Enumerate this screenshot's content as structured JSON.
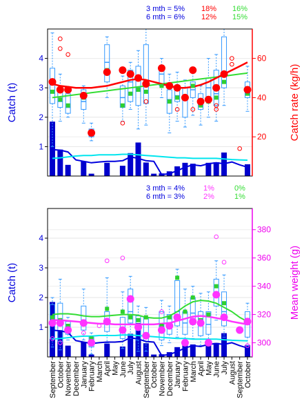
{
  "colors": {
    "catch": "#0000dd",
    "catch_fill": "#0000cc",
    "box": "#3399ff",
    "median_pt": "#2fd02f",
    "rate_pt": "#ff0000",
    "rate_outlier": "#ff0000",
    "rate_axis": "#ff0000",
    "weight_pt": "#ff33ff",
    "weight_axis": "#ee00ee",
    "smooth_green": "#33dd33",
    "cyan": "#00e5ee",
    "frame": "#000000"
  },
  "chart_data": [
    {
      "type": "bar",
      "panel": "top",
      "ylabel": "Catch (t)",
      "y2label": "Catch rate (kg/h)",
      "ylim": [
        0,
        5
      ],
      "y2lim": [
        0,
        75
      ],
      "yticks": [
        "1",
        "2",
        "3",
        "4"
      ],
      "y2ticks": [
        "20",
        "40",
        "60"
      ],
      "stats": [
        {
          "label": "3 mth = 5%",
          "v1": "18%",
          "v2": "16%"
        },
        {
          "label": "6 mth = 6%",
          "v1": "12%",
          "v2": "15%"
        }
      ],
      "n_months": 26,
      "catch_bars": [
        1.85,
        0.9,
        0.38,
        0,
        0.5,
        0.08,
        0,
        0.45,
        0,
        0.35,
        0.78,
        1.14,
        0.46,
        0.08,
        0.09,
        0.16,
        0.33,
        0.45,
        0.42,
        0,
        0.45,
        0.47,
        0.8,
        0,
        0,
        0.4
      ],
      "catch_line": [
        0.9,
        0.88,
        0.82,
        0.55,
        0.5,
        0.45,
        0.48,
        0.5,
        0.5,
        0.52,
        0.65,
        0.6,
        0.52,
        0.5,
        0.05,
        0.08,
        0.18,
        0.3,
        0.38,
        0.35,
        0.42,
        0.45,
        0.42,
        0.48,
        0.38,
        0.3
      ],
      "cyan_line": [
        0.6,
        0.62,
        0.65,
        0.68,
        0.7,
        0.7,
        0.72,
        0.72,
        0.72,
        0.74,
        0.74,
        0.72,
        0.7,
        0.68,
        0.66,
        0.64,
        0.62,
        0.62,
        0.6,
        0.6,
        0.6,
        0.6,
        0.58,
        0.56,
        0.55,
        0.54
      ],
      "rate": [
        48,
        44,
        44,
        null,
        41,
        22,
        null,
        53,
        null,
        54,
        52,
        50,
        47,
        null,
        55,
        46,
        45,
        40,
        54,
        38,
        39,
        45,
        52,
        null,
        null,
        44
      ],
      "rate_outliers": [
        [
          1,
          65
        ],
        [
          1,
          70
        ],
        [
          2,
          62
        ],
        [
          9,
          27
        ],
        [
          12,
          38
        ],
        [
          16,
          34
        ],
        [
          18,
          34
        ],
        [
          21,
          34
        ],
        [
          21,
          36
        ],
        [
          23,
          57
        ],
        [
          23,
          60
        ],
        [
          24,
          14
        ]
      ],
      "boxes": [
        {
          "i": 0,
          "q1": 37,
          "med": 48,
          "q3": 55,
          "lo": 15,
          "hi": 73,
          "g": 43
        },
        {
          "i": 1,
          "q1": 35,
          "med": 38,
          "q3": 45,
          "lo": 28,
          "hi": 52,
          "g": 39
        },
        {
          "i": 2,
          "q1": 32,
          "med": 35,
          "q3": 42,
          "lo": 30,
          "hi": 45,
          "g": 36
        },
        {
          "i": 4,
          "q1": 34,
          "med": 38,
          "q3": 44,
          "lo": 27,
          "hi": 46,
          "g": 40
        },
        {
          "i": 5,
          "q1": 20,
          "med": 22,
          "q3": 24,
          "lo": 18,
          "hi": 27,
          "g": 22
        },
        {
          "i": 7,
          "q1": 48,
          "med": 58,
          "q3": 67,
          "lo": 40,
          "hi": 71,
          "g": 54
        },
        {
          "i": 9,
          "q1": 35,
          "med": 40,
          "q3": 46,
          "lo": 28,
          "hi": 51,
          "g": 36
        },
        {
          "i": 10,
          "q1": 38,
          "med": 48,
          "q3": 54,
          "lo": 34,
          "hi": 58,
          "g": 42
        },
        {
          "i": 11,
          "q1": 36,
          "med": 45,
          "q3": 56,
          "lo": 24,
          "hi": 64,
          "g": 44
        },
        {
          "i": 12,
          "q1": 37,
          "med": 48,
          "q3": 67,
          "lo": 26,
          "hi": 75,
          "g": 43
        },
        {
          "i": 14,
          "q1": 46,
          "med": 52,
          "q3": 56,
          "lo": 40,
          "hi": 60,
          "g": 46
        },
        {
          "i": 15,
          "q1": 32,
          "med": 39,
          "q3": 44,
          "lo": 22,
          "hi": 52,
          "g": 38
        },
        {
          "i": 16,
          "q1": 38,
          "med": 41,
          "q3": 46,
          "lo": 28,
          "hi": 53,
          "g": 40
        },
        {
          "i": 17,
          "q1": 30,
          "med": 40,
          "q3": 45,
          "lo": 25,
          "hi": 49,
          "g": 40
        },
        {
          "i": 18,
          "q1": 40,
          "med": 44,
          "q3": 48,
          "lo": 31,
          "hi": 54,
          "g": 46
        },
        {
          "i": 19,
          "q1": 34,
          "med": 37,
          "q3": 42,
          "lo": 26,
          "hi": 46,
          "g": 36
        },
        {
          "i": 20,
          "q1": 40,
          "med": 45,
          "q3": 50,
          "lo": 30,
          "hi": 60,
          "g": 38
        },
        {
          "i": 21,
          "q1": 36,
          "med": 42,
          "q3": 54,
          "lo": 28,
          "hi": 62,
          "g": 40
        },
        {
          "i": 22,
          "q1": 45,
          "med": 53,
          "q3": 71,
          "lo": 36,
          "hi": 75,
          "g": 48
        },
        {
          "i": 25,
          "q1": 40,
          "med": 44,
          "q3": 48,
          "lo": 33,
          "hi": 56,
          "g": 42
        }
      ],
      "green_line": [
        40,
        40.5,
        41,
        41.5,
        42,
        42.5,
        43,
        43.5,
        44,
        44.5,
        45,
        45.5,
        46,
        46.5,
        47,
        47.5,
        48,
        48.5,
        49,
        49.5,
        50,
        50.5,
        51,
        51.5,
        52,
        52.5
      ],
      "red_line": [
        47,
        46,
        45.5,
        45,
        45,
        45,
        45.5,
        46,
        47,
        48,
        49,
        49.5,
        49,
        48,
        47,
        46,
        45,
        45,
        45.5,
        46.5,
        48,
        50,
        52,
        54,
        56,
        58
      ]
    },
    {
      "type": "bar",
      "panel": "bottom",
      "ylabel": "Catch (t)",
      "y2label": "Mean weight (g)",
      "ylim": [
        0,
        5
      ],
      "y2lim": [
        290,
        395
      ],
      "yticks": [
        "1",
        "2",
        "3",
        "4"
      ],
      "y2ticks": [
        "300",
        "320",
        "340",
        "360",
        "380"
      ],
      "stats": [
        {
          "label": "3 mth = 4%",
          "v1": "1%",
          "v2": "0%"
        },
        {
          "label": "6 mth = 3%",
          "v1": "2%",
          "v2": "1%"
        }
      ],
      "n_months": 26,
      "catch_bars": [
        1.85,
        0.9,
        0.38,
        0,
        0.5,
        0.08,
        0,
        0.45,
        0,
        0.35,
        0.78,
        1.14,
        0.46,
        0.08,
        0.09,
        0.16,
        0.33,
        0.45,
        0.42,
        0,
        0.45,
        0.47,
        0.8,
        0,
        0,
        0.4
      ],
      "catch_line": [
        0.9,
        0.88,
        0.82,
        0.55,
        0.5,
        0.45,
        0.48,
        0.5,
        0.5,
        0.52,
        0.65,
        0.6,
        0.52,
        0.5,
        0.05,
        0.08,
        0.18,
        0.3,
        0.38,
        0.35,
        0.42,
        0.45,
        0.42,
        0.48,
        0.38,
        0.3
      ],
      "cyan_line": [
        0.6,
        0.62,
        0.65,
        0.68,
        0.7,
        0.7,
        0.72,
        0.72,
        0.72,
        0.74,
        0.74,
        0.72,
        0.7,
        0.68,
        0.66,
        0.64,
        0.62,
        0.62,
        0.6,
        0.6,
        0.6,
        0.6,
        0.58,
        0.56,
        0.55,
        0.54
      ],
      "weight": [
        314,
        314,
        309,
        null,
        314,
        300,
        null,
        315,
        null,
        309,
        331,
        311,
        305,
        null,
        309,
        312,
        318,
        300,
        315,
        314,
        300,
        334,
        318,
        null,
        309,
        315
      ],
      "weight_outliers": [
        [
          0,
          303
        ],
        [
          1,
          300
        ],
        [
          2,
          309
        ],
        [
          4,
          307
        ],
        [
          6,
          312
        ],
        [
          7,
          358
        ],
        [
          9,
          360
        ],
        [
          14,
          322
        ],
        [
          21,
          375
        ],
        [
          22,
          357
        ],
        [
          25,
          298
        ]
      ],
      "boxes": [
        {
          "i": 0,
          "q1": 303,
          "med": 315,
          "q3": 327,
          "lo": 297,
          "hi": 332,
          "g": 318
        },
        {
          "i": 1,
          "q1": 301,
          "med": 313,
          "q3": 328,
          "lo": 295,
          "hi": 345,
          "g": 316
        },
        {
          "i": 2,
          "q1": 306,
          "med": 309,
          "q3": 315,
          "lo": 302,
          "hi": 318,
          "g": 312
        },
        {
          "i": 4,
          "q1": 309,
          "med": 316,
          "q3": 326,
          "lo": 302,
          "hi": 338,
          "g": 315
        },
        {
          "i": 5,
          "q1": 297,
          "med": 300,
          "q3": 304,
          "lo": 292,
          "hi": 307,
          "g": 303
        },
        {
          "i": 7,
          "q1": 308,
          "med": 314,
          "q3": 322,
          "lo": 300,
          "hi": 346,
          "g": 324
        },
        {
          "i": 9,
          "q1": 303,
          "med": 310,
          "q3": 318,
          "lo": 296,
          "hi": 336,
          "g": 322
        },
        {
          "i": 10,
          "q1": 314,
          "med": 322,
          "q3": 338,
          "lo": 303,
          "hi": 347,
          "g": 318
        },
        {
          "i": 11,
          "q1": 302,
          "med": 309,
          "q3": 319,
          "lo": 294,
          "hi": 326,
          "g": 316
        },
        {
          "i": 12,
          "q1": 301,
          "med": 307,
          "q3": 318,
          "lo": 294,
          "hi": 325,
          "g": 318
        },
        {
          "i": 14,
          "q1": 302,
          "med": 310,
          "q3": 322,
          "lo": 298,
          "hi": 330,
          "g": 312
        },
        {
          "i": 15,
          "q1": 306,
          "med": 312,
          "q3": 320,
          "lo": 300,
          "hi": 326,
          "g": 318
        },
        {
          "i": 16,
          "q1": 312,
          "med": 322,
          "q3": 344,
          "lo": 304,
          "hi": 352,
          "g": 346
        },
        {
          "i": 17,
          "q1": 306,
          "med": 314,
          "q3": 322,
          "lo": 300,
          "hi": 338,
          "g": 322
        },
        {
          "i": 18,
          "q1": 313,
          "med": 321,
          "q3": 332,
          "lo": 303,
          "hi": 340,
          "g": 332
        },
        {
          "i": 19,
          "q1": 305,
          "med": 314,
          "q3": 322,
          "lo": 298,
          "hi": 335,
          "g": 316
        },
        {
          "i": 20,
          "q1": 306,
          "med": 313,
          "q3": 322,
          "lo": 298,
          "hi": 336,
          "g": 320
        },
        {
          "i": 21,
          "q1": 326,
          "med": 333,
          "q3": 345,
          "lo": 316,
          "hi": 358,
          "g": 340
        },
        {
          "i": 22,
          "q1": 312,
          "med": 322,
          "q3": 336,
          "lo": 304,
          "hi": 348,
          "g": 328
        },
        {
          "i": 25,
          "q1": 304,
          "med": 314,
          "q3": 322,
          "lo": 298,
          "hi": 328,
          "g": 316
        }
      ],
      "green_line": [
        320,
        320.5,
        320.5,
        320,
        319,
        318.5,
        318.5,
        319,
        319.5,
        320,
        320,
        319.5,
        318,
        317.5,
        317.5,
        319,
        322,
        326,
        329,
        330,
        329.5,
        328,
        325,
        322,
        318,
        315
      ],
      "mag_line": [
        316,
        316,
        315.5,
        315,
        314.5,
        314,
        313.5,
        313.5,
        313,
        313,
        313,
        313,
        313,
        313,
        313.5,
        314,
        315.5,
        317,
        318.5,
        319,
        318.5,
        317.5,
        316.5,
        315,
        314,
        313
      ]
    }
  ],
  "months": [
    "September",
    "October",
    "November",
    "December",
    "January",
    "February",
    "March",
    "April",
    "May",
    "June",
    "July",
    "August",
    "September",
    "October",
    "November",
    "December",
    "January",
    "February",
    "March",
    "April",
    "May",
    "June",
    "July",
    "August",
    "September",
    "October"
  ]
}
